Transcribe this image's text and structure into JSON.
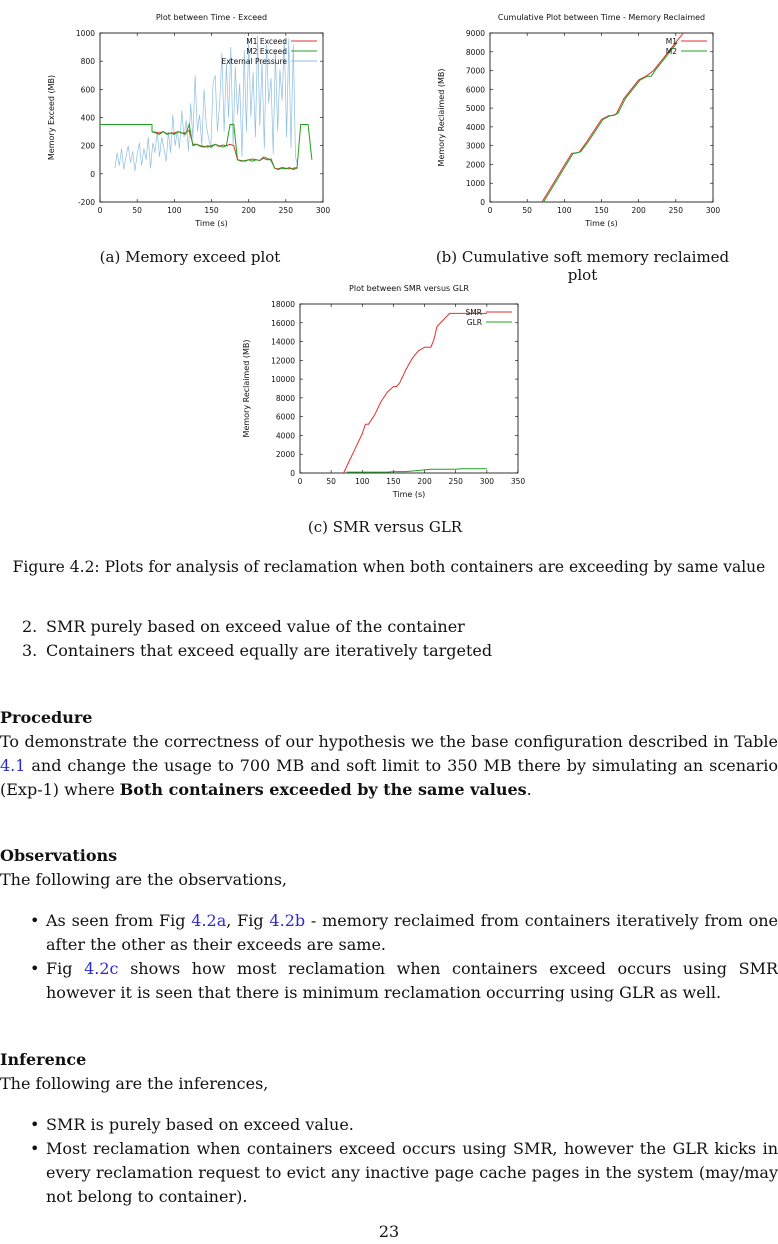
{
  "figures": {
    "a": {
      "caption": "(a) Memory exceed plot"
    },
    "b": {
      "caption": "(b) Cumulative soft memory reclaimed plot"
    },
    "c": {
      "caption": "(c) SMR versus GLR"
    },
    "main_caption": "Figure 4.2: Plots for analysis of reclamation when both containers are exceeding by same value"
  },
  "chart_data": [
    {
      "id": "a",
      "type": "line",
      "title": "Plot between Time - Exceed",
      "xlabel": "Time (s)",
      "ylabel": "Memory Exceed (MB)",
      "xlim": [
        0,
        300
      ],
      "ylim": [
        -200,
        1000
      ],
      "xticks": [
        "0",
        "50",
        "100",
        "150",
        "200",
        "250",
        "300"
      ],
      "yticks": [
        "-200",
        "0",
        "200",
        "400",
        "600",
        "800",
        "1000"
      ],
      "legend": {
        "placement": "top-right"
      },
      "series": [
        {
          "name": "M1 Exceed",
          "color": "#e03030",
          "x": [
            70,
            75,
            80,
            85,
            90,
            95,
            100,
            105,
            110,
            115,
            120,
            125,
            130,
            135,
            140,
            145,
            150,
            155,
            160,
            165,
            170,
            175,
            180,
            185,
            190,
            195,
            200,
            205,
            210,
            215,
            220,
            225,
            230,
            235,
            240,
            245,
            250,
            255,
            260,
            265
          ],
          "y": [
            300,
            295,
            290,
            300,
            285,
            290,
            290,
            300,
            290,
            290,
            310,
            210,
            210,
            200,
            195,
            190,
            200,
            210,
            195,
            205,
            200,
            210,
            200,
            100,
            95,
            90,
            100,
            105,
            100,
            95,
            110,
            100,
            105,
            40,
            35,
            45,
            40,
            35,
            40,
            45
          ]
        },
        {
          "name": "M2 Exceed",
          "color": "#20a020",
          "x": [
            0,
            70,
            70,
            75,
            80,
            85,
            90,
            95,
            100,
            105,
            110,
            115,
            120,
            125,
            130,
            135,
            140,
            145,
            150,
            155,
            160,
            165,
            170,
            175,
            180,
            185,
            190,
            195,
            200,
            205,
            210,
            215,
            220,
            225,
            230,
            235,
            240,
            245,
            250,
            255,
            260,
            265,
            270,
            280,
            285
          ],
          "y": [
            350,
            350,
            300,
            290,
            280,
            300,
            280,
            290,
            280,
            300,
            290,
            280,
            350,
            200,
            210,
            195,
            190,
            200,
            190,
            210,
            200,
            190,
            200,
            350,
            350,
            100,
            90,
            95,
            100,
            90,
            100,
            95,
            120,
            110,
            95,
            40,
            30,
            40,
            35,
            45,
            30,
            40,
            350,
            350,
            100
          ]
        },
        {
          "name": "External Pressure",
          "color": "#8fbfe0",
          "x": [
            20,
            23,
            26,
            29,
            32,
            35,
            38,
            41,
            44,
            47,
            50,
            53,
            56,
            59,
            62,
            65,
            68,
            71,
            74,
            77,
            80,
            83,
            86,
            89,
            92,
            95,
            98,
            101,
            104,
            107,
            110,
            113,
            116,
            119,
            122,
            125,
            128,
            131,
            134,
            137,
            140,
            143,
            146,
            149,
            152,
            155,
            158,
            161,
            164,
            167,
            170,
            173,
            176,
            179,
            182,
            185,
            188,
            191,
            194,
            197,
            200,
            203,
            206,
            209,
            212,
            215,
            218,
            221,
            224,
            227,
            230,
            233,
            236,
            239,
            242,
            245,
            248,
            251,
            254,
            257,
            260,
            263,
            266
          ],
          "y": [
            40,
            150,
            60,
            180,
            30,
            120,
            200,
            80,
            160,
            20,
            140,
            220,
            60,
            180,
            100,
            260,
            40,
            220,
            150,
            300,
            120,
            260,
            180,
            90,
            300,
            150,
            420,
            200,
            300,
            180,
            450,
            260,
            380,
            160,
            500,
            250,
            700,
            300,
            420,
            200,
            600,
            340,
            260,
            180,
            640,
            700,
            300,
            500,
            860,
            300,
            780,
            400,
            900,
            200,
            760,
            420,
            640,
            120,
            880,
            300,
            950,
            400,
            720,
            260,
            980,
            340,
            800,
            180,
            920,
            500,
            680,
            140,
            860,
            300,
            740,
            520,
            960,
            260,
            960,
            180,
            920,
            120,
            60
          ]
        }
      ]
    },
    {
      "id": "b",
      "type": "line",
      "title": "Cumulative Plot between Time - Memory Reclaimed",
      "xlabel": "Time (s)",
      "ylabel": "Memory Reclaimed (MB)",
      "xlim": [
        0,
        300
      ],
      "ylim": [
        0,
        9000
      ],
      "xticks": [
        "0",
        "50",
        "100",
        "150",
        "200",
        "250",
        "300"
      ],
      "yticks": [
        "0",
        "1000",
        "2000",
        "3000",
        "4000",
        "5000",
        "6000",
        "7000",
        "8000",
        "9000"
      ],
      "legend": {
        "placement": "top-right"
      },
      "series": [
        {
          "name": "M1",
          "color": "#e03030",
          "x": [
            70,
            80,
            90,
            100,
            110,
            115,
            120,
            130,
            140,
            150,
            160,
            165,
            170,
            175,
            180,
            190,
            200,
            210,
            220,
            230,
            240,
            250,
            260
          ],
          "y": [
            0,
            650,
            1300,
            1950,
            2600,
            2600,
            2650,
            3200,
            3800,
            4400,
            4600,
            4600,
            4700,
            5100,
            5500,
            6000,
            6500,
            6700,
            7000,
            7500,
            8000,
            8500,
            9000
          ]
        },
        {
          "name": "M2",
          "color": "#20a020",
          "x": [
            72,
            82,
            92,
            102,
            112,
            117,
            122,
            132,
            142,
            152,
            162,
            167,
            172,
            177,
            182,
            192,
            202,
            212,
            217,
            222,
            232,
            242,
            252
          ],
          "y": [
            0,
            650,
            1300,
            1950,
            2600,
            2620,
            2680,
            3200,
            3800,
            4400,
            4600,
            4620,
            4720,
            5100,
            5500,
            6000,
            6500,
            6700,
            6700,
            7000,
            7500,
            8000,
            8500
          ]
        }
      ]
    },
    {
      "id": "c",
      "type": "line",
      "title": "Plot between SMR versus GLR",
      "xlabel": "Time (s)",
      "ylabel": "Memory Reclaimed (MB)",
      "xlim": [
        0,
        350
      ],
      "ylim": [
        0,
        18000
      ],
      "xticks": [
        "0",
        "50",
        "100",
        "150",
        "200",
        "250",
        "300",
        "350"
      ],
      "yticks": [
        "0",
        "2000",
        "4000",
        "6000",
        "8000",
        "10000",
        "12000",
        "14000",
        "16000",
        "18000"
      ],
      "legend": {
        "placement": "top-right"
      },
      "series": [
        {
          "name": "SMR",
          "color": "#e03030",
          "x": [
            70,
            80,
            90,
            100,
            105,
            110,
            120,
            130,
            140,
            150,
            155,
            160,
            170,
            180,
            190,
            200,
            210,
            215,
            220,
            230,
            240,
            250,
            260,
            270,
            280,
            300
          ],
          "y": [
            0,
            1400,
            2800,
            4200,
            5200,
            5200,
            6200,
            7600,
            8600,
            9200,
            9200,
            9600,
            11000,
            12200,
            13000,
            13400,
            13400,
            14200,
            15600,
            16300,
            17000,
            17000,
            17000,
            17000,
            17000,
            17000
          ]
        },
        {
          "name": "GLR",
          "color": "#20a020",
          "x": [
            75,
            90,
            95,
            140,
            150,
            170,
            210,
            215,
            250,
            260,
            300
          ],
          "y": [
            100,
            100,
            100,
            100,
            150,
            150,
            400,
            400,
            400,
            450,
            450
          ]
        }
      ]
    }
  ],
  "list_top": [
    {
      "num": "2.",
      "text": "SMR purely based on exceed value of the container"
    },
    {
      "num": "3.",
      "text": "Containers that exceed equally are iteratively targeted"
    }
  ],
  "procedure": {
    "heading": "Procedure",
    "text_1": "To demonstrate the correctness of our hypothesis we the base configuration described in Table ",
    "link_1": "4.1",
    "text_2": " and change the usage to 700 MB and soft limit to 350 MB there by simulating an scenario (Exp-1) where ",
    "bold": "Both containers exceeded by the same values",
    "text_3": "."
  },
  "observations": {
    "heading": "Observations",
    "intro": "The following are the observations,",
    "item1": {
      "pre": "As seen from Fig ",
      "link_a": "4.2a",
      "mid": ", Fig ",
      "link_b": "4.2b",
      "post": " - memory reclaimed from containers iteratively from one after the other as their exceeds are same."
    },
    "item2": {
      "pre": "Fig ",
      "link": "4.2c",
      "post": " shows how most reclamation when containers exceed occurs using SMR however it is seen that there is minimum reclamation occurring using GLR as well."
    }
  },
  "inference": {
    "heading": "Inference",
    "intro": "The following are the inferences,",
    "items": [
      "SMR is purely based on exceed value.",
      "Most reclamation when containers exceed occurs using SMR, however the GLR kicks in every reclamation request to evict any inactive page cache pages in the system (may/may not belong to container)."
    ]
  },
  "bullet_symbol": "•",
  "page_number": "23"
}
